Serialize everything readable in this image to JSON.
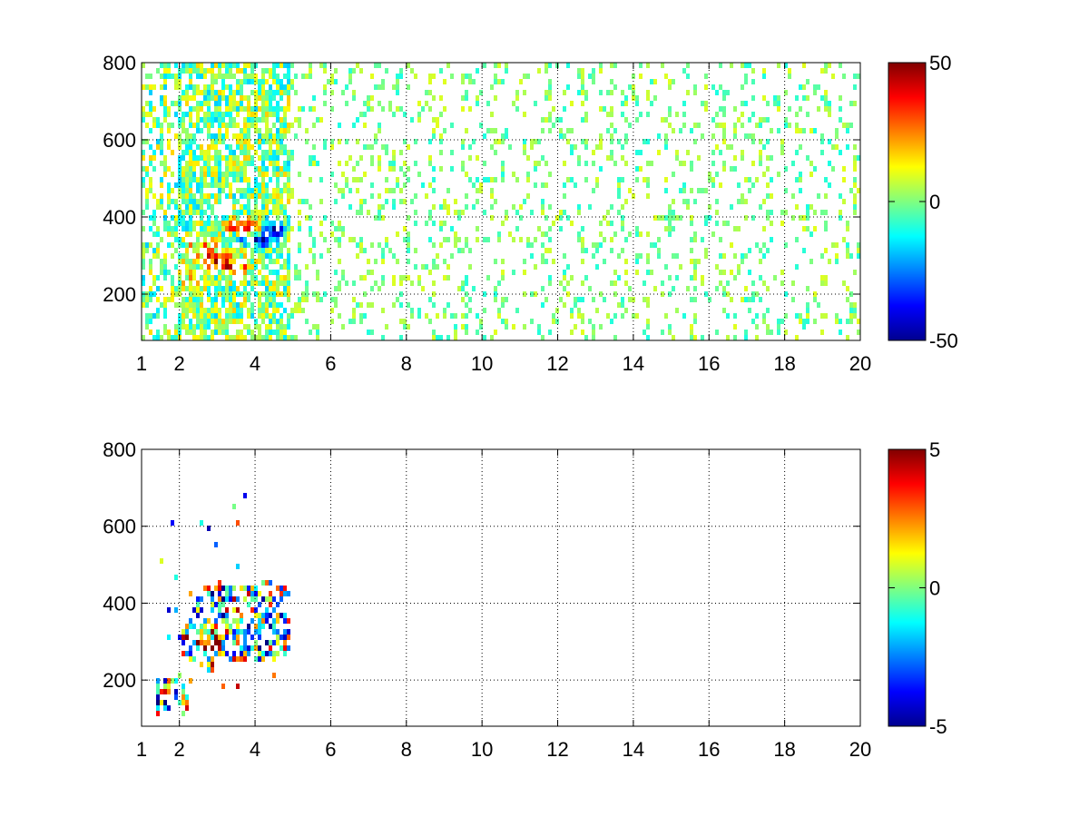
{
  "chart_data": [
    {
      "type": "heatmap",
      "title": "",
      "xlabel": "",
      "ylabel": "",
      "xlim": [
        1,
        20
      ],
      "ylim": [
        80,
        800
      ],
      "xticks": [
        1,
        2,
        4,
        6,
        8,
        10,
        12,
        14,
        16,
        18,
        20
      ],
      "yticks": [
        200,
        400,
        600,
        800
      ],
      "grid": true,
      "colormap": "jet",
      "clim": [
        -50,
        50
      ],
      "colorbar_ticks": [
        -50,
        0,
        50
      ],
      "blobs": [
        {
          "x": 3.0,
          "y": 290,
          "value": 38,
          "sx": 0.35,
          "sy": 14
        },
        {
          "x": 3.7,
          "y": 375,
          "value": 42,
          "sx": 0.3,
          "sy": 12
        },
        {
          "x": 2.6,
          "y": 330,
          "value": 25,
          "sx": 0.25,
          "sy": 12
        },
        {
          "x": 4.0,
          "y": 340,
          "value": -40,
          "sx": 0.35,
          "sy": 12
        },
        {
          "x": 4.5,
          "y": 370,
          "value": -45,
          "sx": 0.2,
          "sy": 18
        },
        {
          "x": 3.4,
          "y": 270,
          "value": 28,
          "sx": 0.35,
          "sy": 10
        },
        {
          "x": 1.7,
          "y": 140,
          "value": -25,
          "sx": 0.15,
          "sy": 12
        },
        {
          "x": 2.4,
          "y": 230,
          "value": 22,
          "sx": 0.2,
          "sy": 20
        }
      ]
    },
    {
      "type": "heatmap",
      "title": "",
      "xlabel": "",
      "ylabel": "",
      "xlim": [
        1,
        20
      ],
      "ylim": [
        80,
        800
      ],
      "xticks": [
        1,
        2,
        4,
        6,
        8,
        10,
        12,
        14,
        16,
        18,
        20
      ],
      "yticks": [
        200,
        400,
        600,
        800
      ],
      "grid": true,
      "colormap": "jet",
      "clim": [
        -5,
        5
      ],
      "colorbar_ticks": [
        -5,
        0,
        5
      ],
      "blobs": [
        {
          "x": 3.9,
          "y": 320,
          "value": -1.8,
          "sx": 0.4,
          "sy": 30
        },
        {
          "x": 4.4,
          "y": 360,
          "value": -1.2,
          "sx": 0.3,
          "sy": 40
        },
        {
          "x": 3.5,
          "y": 380,
          "value": 3.5,
          "sx": 0.3,
          "sy": 25
        },
        {
          "x": 2.7,
          "y": 300,
          "value": 4.0,
          "sx": 0.3,
          "sy": 25
        },
        {
          "x": 3.0,
          "y": 380,
          "value": -4.0,
          "sx": 0.25,
          "sy": 30
        },
        {
          "x": 1.7,
          "y": 140,
          "value": -3.5,
          "sx": 0.2,
          "sy": 12
        }
      ]
    }
  ]
}
